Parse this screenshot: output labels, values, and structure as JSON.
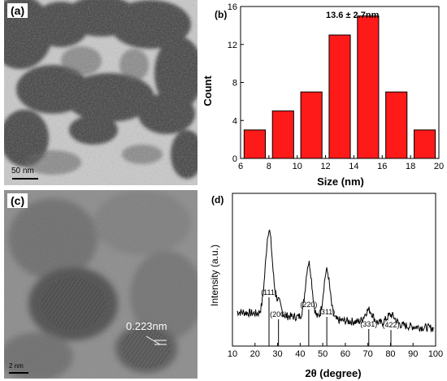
{
  "panels": {
    "a": {
      "label": "(a)",
      "scale_bar": "50 nm"
    },
    "b": {
      "label": "(b)"
    },
    "c": {
      "label": "(c)",
      "lattice_spacing": "0.223nm",
      "scale_bar": "2 nm"
    },
    "d": {
      "label": "(d)"
    }
  },
  "colors": {
    "bar_fill": "#ff1a1a",
    "bar_edge": "#000000",
    "xrd_line": "#000000"
  },
  "chart_data": [
    {
      "type": "bar",
      "annotation": "13.6 ± 2.7nm",
      "xlabel": "Size (nm)",
      "ylabel": "Count",
      "xlim": [
        6,
        20
      ],
      "ylim": [
        0,
        16
      ],
      "x_ticks": [
        "6",
        "8",
        "10",
        "12",
        "14",
        "16",
        "18",
        "20"
      ],
      "y_ticks": [
        "0",
        "4",
        "8",
        "12",
        "16"
      ],
      "bin_width": 2,
      "bins": [
        {
          "x": 7,
          "count": 3
        },
        {
          "x": 9,
          "count": 5
        },
        {
          "x": 11,
          "count": 7
        },
        {
          "x": 13,
          "count": 13
        },
        {
          "x": 15,
          "count": 15
        },
        {
          "x": 17,
          "count": 7
        },
        {
          "x": 19,
          "count": 3
        }
      ]
    },
    {
      "type": "line",
      "xlabel": "2θ (degree)",
      "ylabel": "Intensity (a.u.)",
      "xlim": [
        10,
        100
      ],
      "x_ticks": [
        "10",
        "20",
        "30",
        "40",
        "50",
        "60",
        "70",
        "80",
        "90",
        "100"
      ],
      "pattern": {
        "baseline_start": 40,
        "baseline_end": 30,
        "peaks": [
          {
            "pos": 26.2,
            "height": 52,
            "width": 2.2
          },
          {
            "pos": 30.4,
            "height": 8,
            "width": 1.6
          },
          {
            "pos": 43.8,
            "height": 34,
            "width": 2.0
          },
          {
            "pos": 51.8,
            "height": 30,
            "width": 2.0
          },
          {
            "pos": 70.4,
            "height": 8,
            "width": 2.5
          },
          {
            "pos": 80.2,
            "height": 6,
            "width": 2.8
          }
        ]
      },
      "reference_lines": [
        {
          "hkl": "(111)",
          "pos": 26.2,
          "height": 1.0
        },
        {
          "hkl": "(200)",
          "pos": 30.4,
          "height": 0.55
        },
        {
          "hkl": "(220)",
          "pos": 43.8,
          "height": 0.75
        },
        {
          "hkl": "(311)",
          "pos": 51.8,
          "height": 0.6
        },
        {
          "hkl": "(331)",
          "pos": 70.4,
          "height": 0.35
        },
        {
          "hkl": "(422)",
          "pos": 80.2,
          "height": 0.33
        }
      ]
    }
  ]
}
